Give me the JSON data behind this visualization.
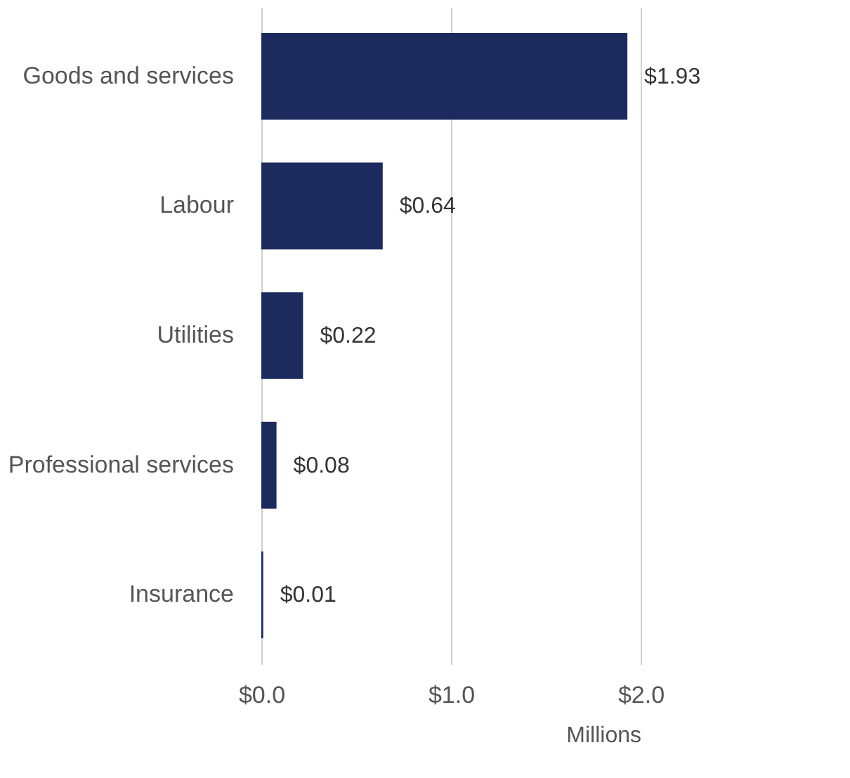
{
  "chart_data": {
    "type": "bar",
    "orientation": "horizontal",
    "categories": [
      "Goods and services",
      "Labour",
      "Utilities",
      "Professional services",
      "Insurance"
    ],
    "values": [
      1.93,
      0.64,
      0.22,
      0.08,
      0.01
    ],
    "color": "#1c2a5e",
    "value_labels": [
      "$1.93",
      "$0.64",
      "$0.22",
      "$0.08",
      "$0.01"
    ],
    "xlabel": "Millions",
    "xlim": [
      0,
      2.0
    ],
    "xticks": [
      {
        "value": 0,
        "label": "$0.0"
      },
      {
        "value": 1,
        "label": "$1.0"
      },
      {
        "value": 2,
        "label": "$2.0"
      }
    ],
    "grid": "x"
  }
}
